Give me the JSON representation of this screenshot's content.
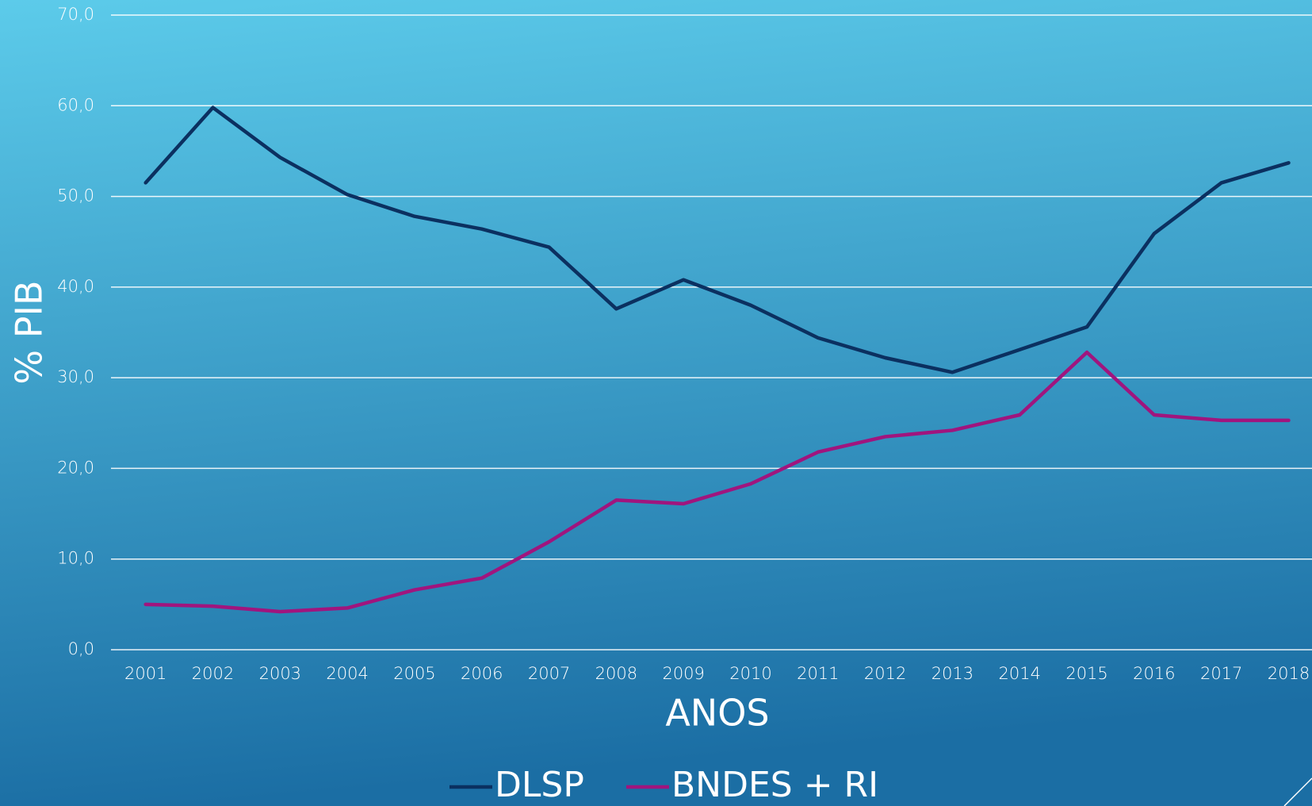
{
  "chart_data": {
    "type": "line",
    "xlabel": "ANOS",
    "ylabel": "% PIB",
    "categories": [
      "2001",
      "2002",
      "2003",
      "2004",
      "2005",
      "2006",
      "2007",
      "2008",
      "2009",
      "2010",
      "2011",
      "2012",
      "2013",
      "2014",
      "2015",
      "2016",
      "2017",
      "2018"
    ],
    "series": [
      {
        "name": "DLSP",
        "color": "#0b3060",
        "values": [
          51.5,
          59.8,
          54.3,
          50.2,
          47.8,
          46.4,
          44.4,
          37.6,
          40.8,
          38.0,
          34.4,
          32.2,
          30.6,
          33.1,
          35.6,
          45.9,
          51.5,
          53.7
        ]
      },
      {
        "name": "BNDES + RI",
        "color": "#a0157e",
        "values": [
          5.0,
          4.8,
          4.2,
          4.6,
          6.6,
          7.9,
          11.9,
          16.5,
          16.1,
          18.3,
          21.8,
          23.5,
          24.2,
          25.9,
          32.8,
          25.9,
          25.3,
          25.3
        ]
      }
    ],
    "ylim": [
      0,
      70
    ],
    "yticks": [
      {
        "value": 0,
        "label": "0,0"
      },
      {
        "value": 10,
        "label": "10,0"
      },
      {
        "value": 20,
        "label": "20,0"
      },
      {
        "value": 30,
        "label": "30,0"
      },
      {
        "value": 40,
        "label": "40,0"
      },
      {
        "value": 50,
        "label": "50,0"
      },
      {
        "value": 60,
        "label": "60,0"
      },
      {
        "value": 70,
        "label": "70,0"
      }
    ],
    "grid": true,
    "legend": "bottom"
  }
}
